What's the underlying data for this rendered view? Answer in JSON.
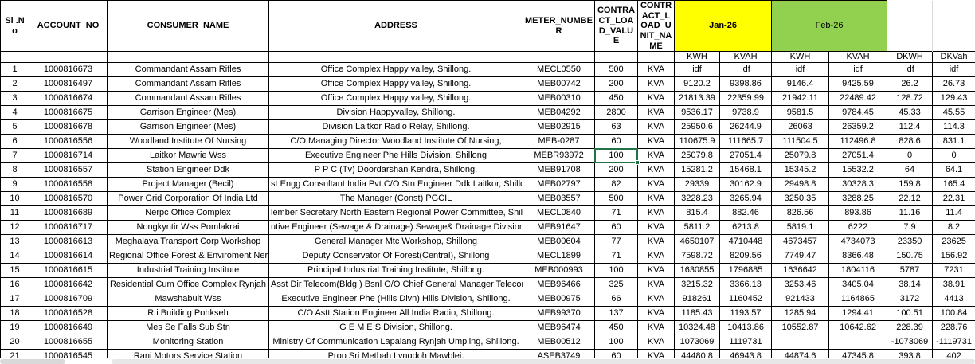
{
  "table": {
    "columns": [
      {
        "key": "sl_no",
        "label": "Sl .No"
      },
      {
        "key": "account_no",
        "label": "ACCOUNT_NO"
      },
      {
        "key": "consumer_name",
        "label": "CONSUMER_NAME"
      },
      {
        "key": "address",
        "label": "ADDRESS"
      },
      {
        "key": "meter_number",
        "label": "METER_NUMBER"
      },
      {
        "key": "contract_load_value",
        "label": "CONTRACT_LOAD_VALUE"
      },
      {
        "key": "contract_load_unit_name",
        "label": "CONTRACT_LOAD_UNIT_NAME"
      }
    ],
    "month_groups": [
      {
        "label": "Jan-26",
        "color": "#FFFF00",
        "sub": [
          "KWH",
          "KVAH"
        ]
      },
      {
        "label": "Feb-26",
        "color": "#92D050",
        "sub": [
          "KWH",
          "KVAH"
        ]
      }
    ],
    "delta_columns": [
      "DKWH",
      "DKVah"
    ],
    "rows": [
      {
        "sl_no": "1",
        "account_no": "1000816673",
        "consumer_name": "Commandant Assam Rifles",
        "address": "Office Complex Happy valley, Shillong.",
        "meter_number": "MECL0550",
        "contract_load_value": "500",
        "contract_load_unit_name": "KVA",
        "jan_kwh": "idf",
        "jan_kvah": "idf",
        "feb_kwh": "idf",
        "feb_kvah": "idf",
        "dkwh": "idf",
        "dkvah": "idf"
      },
      {
        "sl_no": "2",
        "account_no": "1000816497",
        "consumer_name": "Commandant Assam Rifles",
        "address": "Office Complex Happy valley, Shillong.",
        "meter_number": "MEB00742",
        "contract_load_value": "200",
        "contract_load_unit_name": "KVA",
        "jan_kwh": "9120.2",
        "jan_kvah": "9398.86",
        "feb_kwh": "9146.4",
        "feb_kvah": "9425.59",
        "dkwh": "26.2",
        "dkvah": "26.73"
      },
      {
        "sl_no": "3",
        "account_no": "1000816674",
        "consumer_name": "Commandant Assam Rifles",
        "address": "Office Complex Happy valley, Shillong.",
        "meter_number": "MEB00310",
        "contract_load_value": "450",
        "contract_load_unit_name": "KVA",
        "jan_kwh": "21813.39",
        "jan_kvah": "22359.99",
        "feb_kwh": "21942.11",
        "feb_kvah": "22489.42",
        "dkwh": "128.72",
        "dkvah": "129.43"
      },
      {
        "sl_no": "4",
        "account_no": "1000816675",
        "consumer_name": "Garrison Engineer (Mes)",
        "address": "Division Happyvalley, Shillong.",
        "meter_number": "MEB04292",
        "contract_load_value": "2800",
        "contract_load_unit_name": "KVA",
        "jan_kwh": "9536.17",
        "jan_kvah": "9738.9",
        "feb_kwh": "9581.5",
        "feb_kvah": "9784.45",
        "dkwh": "45.33",
        "dkvah": "45.55"
      },
      {
        "sl_no": "5",
        "account_no": "1000816678",
        "consumer_name": "Garrison Engineer (Mes)",
        "address": "Division Laitkor Radio Relay, Shillong.",
        "meter_number": "MEB02915",
        "contract_load_value": "63",
        "contract_load_unit_name": "KVA",
        "jan_kwh": "25950.6",
        "jan_kvah": "26244.9",
        "feb_kwh": "26063",
        "feb_kvah": "26359.2",
        "dkwh": "112.4",
        "dkvah": "114.3"
      },
      {
        "sl_no": "6",
        "account_no": "1000816556",
        "consumer_name": "Woodland Institute Of Nursing",
        "address": "C/O Managing Director Woodland Institute Of Nursing,",
        "meter_number": "MEB-0287",
        "contract_load_value": "60",
        "contract_load_unit_name": "KVA",
        "jan_kwh": "110675.9",
        "jan_kvah": "111665.7",
        "feb_kwh": "111504.5",
        "feb_kvah": "112496.8",
        "dkwh": "828.6",
        "dkvah": "831.1"
      },
      {
        "sl_no": "7",
        "account_no": "1000816714",
        "consumer_name": "Laitkor Mawrie Wss",
        "address": "Executive Engineer Phe Hills Division, Shillong",
        "meter_number": "MEBR93972",
        "contract_load_value": "100",
        "contract_load_unit_name": "KVA",
        "jan_kwh": "25079.8",
        "jan_kvah": "27051.4",
        "feb_kwh": "25079.8",
        "feb_kvah": "27051.4",
        "dkwh": "0",
        "dkvah": "0"
      },
      {
        "sl_no": "8",
        "account_no": "1000816557",
        "consumer_name": "Station Engineer Ddk",
        "address": "P P C (Tv) Doordarshan Kendra, Shillong.",
        "meter_number": "MEB91708",
        "contract_load_value": "200",
        "contract_load_unit_name": "KVA",
        "jan_kwh": "15281.2",
        "jan_kvah": "15468.1",
        "feb_kwh": "15345.2",
        "feb_kvah": "15532.2",
        "dkwh": "64",
        "dkvah": "64.1"
      },
      {
        "sl_no": "9",
        "account_no": "1000816558",
        "consumer_name": "Project Manager (Becil)",
        "address": "st Engg Consultant India Pvt C/O Stn Engineer Ddk Laitkor, Shillong. #",
        "meter_number": "MEB02797",
        "contract_load_value": "82",
        "contract_load_unit_name": "KVA",
        "jan_kwh": "29339",
        "jan_kvah": "30162.9",
        "feb_kwh": "29498.8",
        "feb_kvah": "30328.3",
        "dkwh": "159.8",
        "dkvah": "165.4"
      },
      {
        "sl_no": "10",
        "account_no": "1000816570",
        "consumer_name": "Power Grid Corporation Of India Ltd",
        "address": "The Manager (Const) PGCIL",
        "meter_number": "MEB03557",
        "contract_load_value": "500",
        "contract_load_unit_name": "KVA",
        "jan_kwh": "3228.23",
        "jan_kvah": "3265.94",
        "feb_kwh": "3250.35",
        "feb_kvah": "3288.25",
        "dkwh": "22.12",
        "dkvah": "22.31"
      },
      {
        "sl_no": "11",
        "account_no": "1000816689",
        "consumer_name": "Nerpc Office Complex",
        "address": "lember Secretary North Eastern Regional Power Committee, Shillon",
        "meter_number": "MECL0840",
        "contract_load_value": "71",
        "contract_load_unit_name": "KVA",
        "jan_kwh": "815.4",
        "jan_kvah": "882.46",
        "feb_kwh": "826.56",
        "feb_kvah": "893.86",
        "dkwh": "11.16",
        "dkvah": "11.4"
      },
      {
        "sl_no": "12",
        "account_no": "1000816717",
        "consumer_name": "Nongkyntir Wss Pomlakrai",
        "address": "utive Engineer (Sewage & Drainage) Sewage& Drainage Division, Shi",
        "meter_number": "MEB91647",
        "contract_load_value": "60",
        "contract_load_unit_name": "KVA",
        "jan_kwh": "5811.2",
        "jan_kvah": "6213.8",
        "feb_kwh": "5819.1",
        "feb_kvah": "6222",
        "dkwh": "7.9",
        "dkvah": "8.2"
      },
      {
        "sl_no": "13",
        "account_no": "1000816613",
        "consumer_name": "Meghalaya Transport Corp Workshop",
        "address": "General Manager Mtc Workshop, Shillong",
        "meter_number": "MEB00604",
        "contract_load_value": "77",
        "contract_load_unit_name": "KVA",
        "jan_kwh": "4650107",
        "jan_kvah": "4710448",
        "feb_kwh": "4673457",
        "feb_kvah": "4734073",
        "dkwh": "23350",
        "dkvah": "23625"
      },
      {
        "sl_no": "14",
        "account_no": "1000816614",
        "consumer_name": "Regional Office Forest & Enviroment Ner",
        "address": "Deputy Conservator Of Forest(Central), Shillong",
        "meter_number": "MECL1899",
        "contract_load_value": "71",
        "contract_load_unit_name": "KVA",
        "jan_kwh": "7598.72",
        "jan_kvah": "8209.56",
        "feb_kwh": "7749.47",
        "feb_kvah": "8366.48",
        "dkwh": "150.75",
        "dkvah": "156.92"
      },
      {
        "sl_no": "15",
        "account_no": "1000816615",
        "consumer_name": "Industrial Training Institute",
        "address": "Principal Industrial Training Institute, Shillong.",
        "meter_number": "MEB000993",
        "contract_load_value": "100",
        "contract_load_unit_name": "KVA",
        "jan_kwh": "1630855",
        "jan_kvah": "1796885",
        "feb_kwh": "1636642",
        "feb_kvah": "1804116",
        "dkwh": "5787",
        "dkvah": "7231"
      },
      {
        "sl_no": "16",
        "account_no": "1000816642",
        "consumer_name": "Residential Cum Office Complex Rynjah",
        "address": "Asst Dir Telecom(Bldg ) Bsnl O/O Chief General Manager Telecom",
        "meter_number": "MEB96466",
        "contract_load_value": "325",
        "contract_load_unit_name": "KVA",
        "jan_kwh": "3215.32",
        "jan_kvah": "3366.13",
        "feb_kwh": "3253.46",
        "feb_kvah": "3405.04",
        "dkwh": "38.14",
        "dkvah": "38.91"
      },
      {
        "sl_no": "17",
        "account_no": "1000816709",
        "consumer_name": "Mawshabuit Wss",
        "address": "Executive Engineer Phe (Hills Divn) Hills Division, Shillong.",
        "meter_number": "MEB00975",
        "contract_load_value": "66",
        "contract_load_unit_name": "KVA",
        "jan_kwh": "918261",
        "jan_kvah": "1160452",
        "feb_kwh": "921433",
        "feb_kvah": "1164865",
        "dkwh": "3172",
        "dkvah": "4413"
      },
      {
        "sl_no": "18",
        "account_no": "1000816528",
        "consumer_name": "Rti Building Pohkseh",
        "address": "C/O Astt Station Engineer All India Radio, Shillong.",
        "meter_number": "MEB99370",
        "contract_load_value": "137",
        "contract_load_unit_name": "KVA",
        "jan_kwh": "1185.43",
        "jan_kvah": "1193.57",
        "feb_kwh": "1285.94",
        "feb_kvah": "1294.41",
        "dkwh": "100.51",
        "dkvah": "100.84"
      },
      {
        "sl_no": "19",
        "account_no": "1000816649",
        "consumer_name": "Mes Se Falls Sub Stn",
        "address": "G E M E S Division, Shillong.",
        "meter_number": "MEB96474",
        "contract_load_value": "450",
        "contract_load_unit_name": "KVA",
        "jan_kwh": "10324.48",
        "jan_kvah": "10413.86",
        "feb_kwh": "10552.87",
        "feb_kvah": "10642.62",
        "dkwh": "228.39",
        "dkvah": "228.76"
      },
      {
        "sl_no": "20",
        "account_no": "1000816655",
        "consumer_name": "Monitoring Station",
        "address": "Ministry Of Communication Lapalang Rynjah Umpling, Shillong.",
        "meter_number": "MEB00512",
        "contract_load_value": "100",
        "contract_load_unit_name": "KVA",
        "jan_kwh": "1073069",
        "jan_kvah": "1119731",
        "feb_kwh": "",
        "feb_kvah": "",
        "dkwh": "-1073069",
        "dkvah": "-1119731"
      },
      {
        "sl_no": "21",
        "account_no": "1000816545",
        "consumer_name": "Rani Motors Service Station",
        "address": "Prop Sri Metbah Lyngdoh Mawblei,",
        "meter_number": "ASEB3749",
        "contract_load_value": "60",
        "contract_load_unit_name": "KVA",
        "jan_kwh": "44480.8",
        "jan_kvah": "46943.8",
        "feb_kwh": "44874.6",
        "feb_kvah": "47345.8",
        "dkwh": "393.8",
        "dkvah": "402"
      }
    ]
  },
  "selection": {
    "row_sl_no": "7",
    "column": "contract_load_value",
    "border_color": "#217346"
  }
}
